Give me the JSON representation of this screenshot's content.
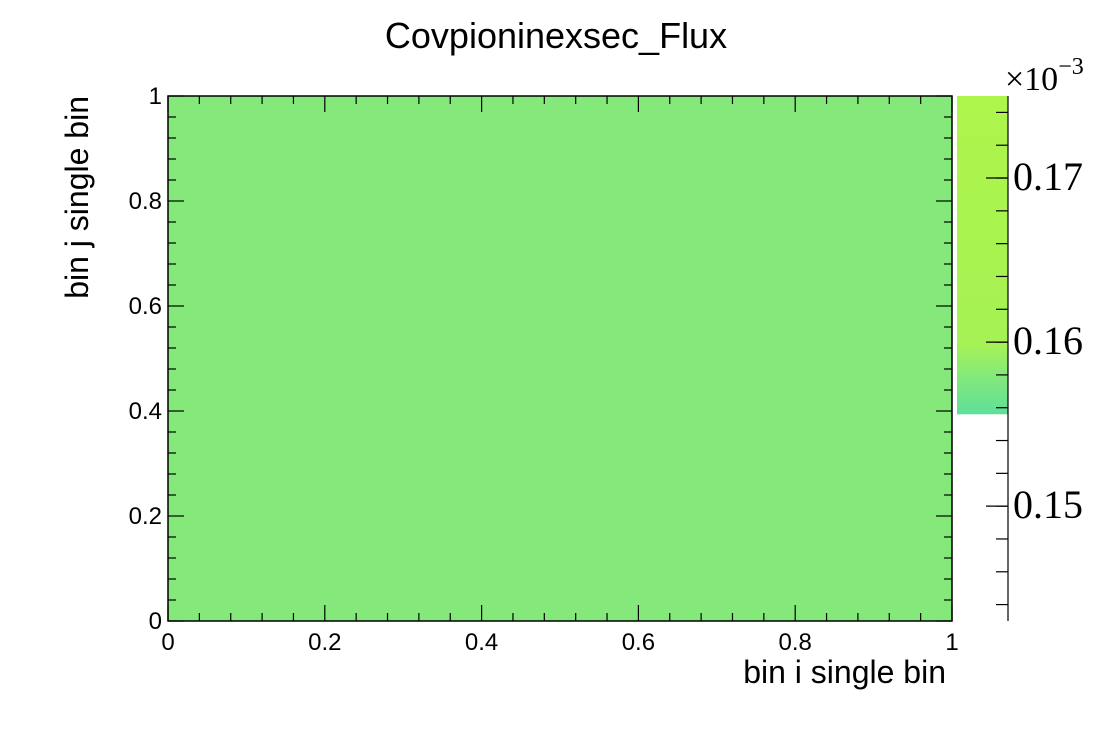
{
  "chart_data": {
    "type": "heatmap",
    "title": "Covpioninexsec_Flux",
    "xlabel": "bin i single bin",
    "ylabel": "bin j single bin",
    "xlim": [
      0,
      1
    ],
    "ylim": [
      0,
      1
    ],
    "x_ticks": [
      "0",
      "0.2",
      "0.4",
      "0.6",
      "0.8",
      "1"
    ],
    "y_ticks": [
      "0",
      "0.2",
      "0.4",
      "0.6",
      "0.8",
      "1"
    ],
    "cells": [
      {
        "x": [
          0,
          1
        ],
        "y": [
          0,
          1
        ],
        "value": 0.158
      }
    ],
    "colorbar": {
      "multiplier": "×10",
      "exponent": "−3",
      "range": [
        0.143,
        0.175
      ],
      "filled_range": [
        0.1556,
        0.175
      ],
      "ticks": [
        0.15,
        0.16,
        0.17
      ],
      "tick_labels": [
        "0.15",
        "0.16",
        "0.17"
      ]
    },
    "colors": {
      "cell_fill": "#84e97a",
      "colorbar_top": "#aef54b",
      "colorbar_bottom": "#5edf9a"
    },
    "grid": false,
    "legend": "none"
  }
}
